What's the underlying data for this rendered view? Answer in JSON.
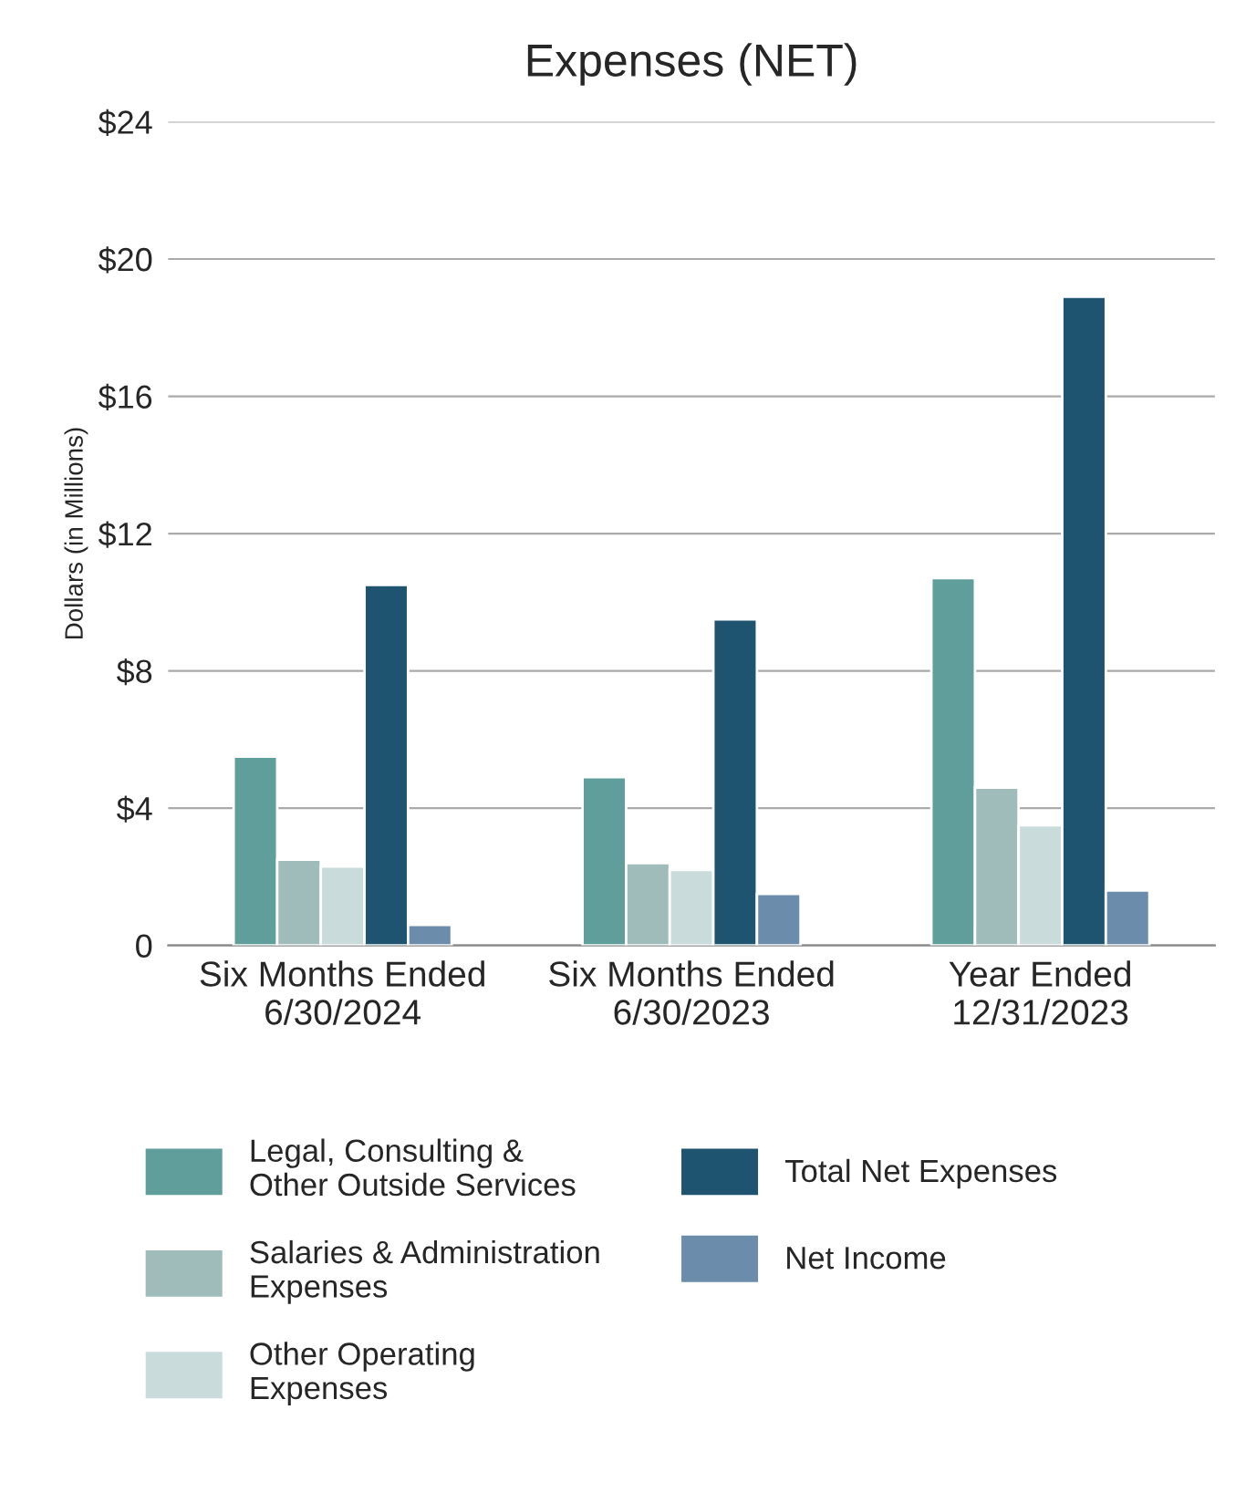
{
  "chart_data": {
    "type": "bar",
    "title": "Expenses (NET)",
    "ylabel": "Dollars (in Millions)",
    "categories": [
      "Six Months Ended\n6/30/2024",
      "Six Months Ended\n6/30/2023",
      "Year Ended\n12/31/2023"
    ],
    "series": [
      {
        "name": "Legal, Consulting &\nOther Outside Services",
        "color": "#5f9e9a",
        "values": [
          5.5,
          4.9,
          10.7
        ]
      },
      {
        "name": "Salaries & Administration\nExpenses",
        "color": "#9fbcbb",
        "values": [
          2.5,
          2.4,
          4.6
        ]
      },
      {
        "name": "Other Operating\nExpenses",
        "color": "#c9dbda",
        "values": [
          2.3,
          2.2,
          3.5
        ]
      },
      {
        "name": "Total Net Expenses",
        "color": "#1f5470",
        "values": [
          10.5,
          9.5,
          18.9
        ]
      },
      {
        "name": "Net Income",
        "color": "#6b8caa",
        "values": [
          0.6,
          1.5,
          1.6
        ]
      }
    ],
    "ylim": [
      0,
      24
    ],
    "yticks": [
      {
        "value": 0,
        "label": "0"
      },
      {
        "value": 4,
        "label": "$4"
      },
      {
        "value": 8,
        "label": "$8"
      },
      {
        "value": 12,
        "label": "$12"
      },
      {
        "value": 16,
        "label": "$16"
      },
      {
        "value": 20,
        "label": "$20"
      },
      {
        "value": 24,
        "label": "$24"
      }
    ],
    "grid": "y",
    "legend": "bottom"
  }
}
